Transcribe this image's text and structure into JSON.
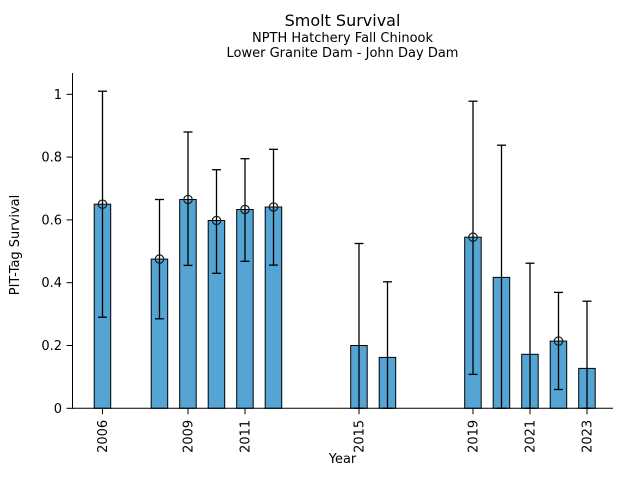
{
  "chart_data": {
    "type": "bar",
    "title": "Smolt Survival",
    "subtitle": [
      "NPTH Hatchery Fall Chinook",
      "Lower Granite Dam - John Day Dam"
    ],
    "xlabel": "Year",
    "ylabel": "PIT-Tag Survival",
    "xlim": [
      2004.9,
      2023.95
    ],
    "ylim": [
      0,
      1.07
    ],
    "xticks": [
      2006,
      2009,
      2011,
      2015,
      2019,
      2021,
      2023
    ],
    "yticks": [
      0,
      0.2,
      0.4,
      0.6,
      0.8,
      1
    ],
    "ytick_labels": [
      "0",
      "0.2",
      "0.4",
      "0.6",
      "0.8",
      "1"
    ],
    "grid": false,
    "legend": "none",
    "bar_width_years": 0.58,
    "bar_color": "#54a4d4",
    "bar_edge_color": "#000000",
    "error_bar_color": "#000000",
    "marker_style": "open-circle",
    "series": [
      {
        "name": "PIT-Tag Survival",
        "points": [
          {
            "year": 2006,
            "value": 0.65,
            "err_lo": 0.29,
            "err_hi": 1.01,
            "marker": true
          },
          {
            "year": 2008,
            "value": 0.475,
            "err_lo": 0.285,
            "err_hi": 0.665,
            "marker": true
          },
          {
            "year": 2009,
            "value": 0.665,
            "err_lo": 0.455,
            "err_hi": 0.88,
            "marker": true
          },
          {
            "year": 2010,
            "value": 0.598,
            "err_lo": 0.43,
            "err_hi": 0.76,
            "marker": true
          },
          {
            "year": 2011,
            "value": 0.633,
            "err_lo": 0.468,
            "err_hi": 0.795,
            "marker": true
          },
          {
            "year": 2012,
            "value": 0.641,
            "err_lo": 0.456,
            "err_hi": 0.825,
            "marker": true
          },
          {
            "year": 2015,
            "value": 0.2,
            "err_lo": 0.0,
            "err_hi": 0.525,
            "marker": false
          },
          {
            "year": 2016,
            "value": 0.162,
            "err_lo": 0.0,
            "err_hi": 0.403,
            "marker": false
          },
          {
            "year": 2019,
            "value": 0.545,
            "err_lo": 0.108,
            "err_hi": 0.978,
            "marker": true
          },
          {
            "year": 2020,
            "value": 0.417,
            "err_lo": 0.0,
            "err_hi": 0.838,
            "marker": false
          },
          {
            "year": 2021,
            "value": 0.172,
            "err_lo": 0.0,
            "err_hi": 0.462,
            "marker": false
          },
          {
            "year": 2022,
            "value": 0.214,
            "err_lo": 0.06,
            "err_hi": 0.369,
            "marker": true
          },
          {
            "year": 2023,
            "value": 0.127,
            "err_lo": 0.0,
            "err_hi": 0.341,
            "marker": false
          }
        ]
      }
    ]
  }
}
